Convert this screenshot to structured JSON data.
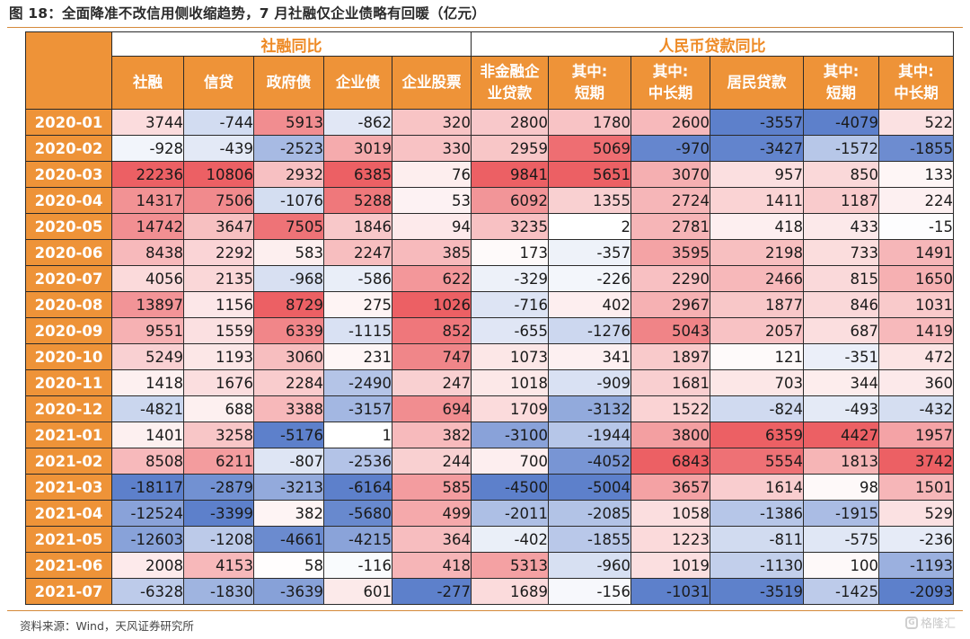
{
  "title": "图 18：全面降准不改信用侧收缩趋势，7 月社融仅企业债略有回暖（亿元）",
  "source": "资料来源：Wind，天风证券研究所",
  "watermark": "格隆汇",
  "groups": [
    {
      "label": "社融同比",
      "span": 5
    },
    {
      "label": "人民币贷款同比",
      "span": 6
    }
  ],
  "columns": [
    "社融",
    "信贷",
    "政府债",
    "企业债",
    "企业股票",
    "非金融企\n业贷款",
    "其中:\n短期",
    "其中:\n中长期",
    "居民贷款",
    "其中:\n短期",
    "其中:\n中长期"
  ],
  "rows": [
    {
      "date": "2020-01",
      "values": [
        3744,
        -744,
        5913,
        -862,
        320,
        2800,
        1780,
        2600,
        -3557,
        -4079,
        522
      ]
    },
    {
      "date": "2020-02",
      "values": [
        -928,
        -439,
        -2523,
        3019,
        330,
        2959,
        5069,
        -970,
        -3427,
        -1572,
        -1855
      ]
    },
    {
      "date": "2020-03",
      "values": [
        22236,
        10806,
        2932,
        6385,
        76,
        9841,
        5651,
        3070,
        957,
        850,
        133
      ]
    },
    {
      "date": "2020-04",
      "values": [
        14317,
        7506,
        -1076,
        5288,
        53,
        6092,
        1355,
        2724,
        1411,
        1187,
        224
      ]
    },
    {
      "date": "2020-05",
      "values": [
        14742,
        3647,
        7505,
        1846,
        94,
        3235,
        2,
        2781,
        418,
        433,
        -15
      ]
    },
    {
      "date": "2020-06",
      "values": [
        8438,
        2292,
        583,
        2247,
        385,
        173,
        -357,
        3595,
        2198,
        733,
        1491
      ]
    },
    {
      "date": "2020-07",
      "values": [
        4056,
        2135,
        -968,
        -586,
        622,
        -329,
        -226,
        2290,
        2466,
        815,
        1650
      ]
    },
    {
      "date": "2020-08",
      "values": [
        13897,
        1156,
        8729,
        275,
        1026,
        -716,
        402,
        2967,
        1877,
        846,
        1031
      ]
    },
    {
      "date": "2020-09",
      "values": [
        9551,
        1559,
        6339,
        -1115,
        852,
        -655,
        -1276,
        5043,
        2057,
        687,
        1419
      ]
    },
    {
      "date": "2020-10",
      "values": [
        5249,
        1193,
        3060,
        231,
        747,
        1073,
        341,
        1897,
        121,
        -351,
        472
      ]
    },
    {
      "date": "2020-11",
      "values": [
        1418,
        1676,
        2284,
        -2490,
        247,
        1018,
        -909,
        1681,
        703,
        344,
        360
      ]
    },
    {
      "date": "2020-12",
      "values": [
        -4821,
        688,
        3388,
        -3157,
        694,
        1709,
        -3132,
        1522,
        -824,
        -493,
        -432
      ]
    },
    {
      "date": "2021-01",
      "values": [
        1401,
        3258,
        -5176,
        1,
        382,
        -3100,
        -1944,
        3800,
        6359,
        4427,
        1957
      ]
    },
    {
      "date": "2021-02",
      "values": [
        8508,
        6211,
        -807,
        -2536,
        244,
        700,
        -4052,
        6843,
        5554,
        1813,
        3742
      ]
    },
    {
      "date": "2021-03",
      "values": [
        -18117,
        -2879,
        -3213,
        -6164,
        585,
        -4500,
        -5004,
        3657,
        1614,
        98,
        1501
      ]
    },
    {
      "date": "2021-04",
      "values": [
        -12524,
        -3399,
        382,
        -5680,
        499,
        -2011,
        -2085,
        1058,
        -1386,
        -1915,
        529
      ]
    },
    {
      "date": "2021-05",
      "values": [
        -12603,
        -1208,
        -4661,
        -4215,
        364,
        -402,
        -1855,
        1223,
        -811,
        -575,
        -236
      ]
    },
    {
      "date": "2021-06",
      "values": [
        2008,
        4153,
        58,
        -116,
        418,
        5313,
        -960,
        1019,
        -1130,
        100,
        -1193
      ]
    },
    {
      "date": "2021-07",
      "values": [
        -6328,
        -1830,
        -3639,
        601,
        -277,
        1689,
        -156,
        -1031,
        -3519,
        -1425,
        -2093
      ]
    }
  ],
  "colors": {
    "header_bg": "#ee9338",
    "header_text": "#ffffff",
    "group_text": "#ee8a25",
    "pos_max": "#ec6064",
    "neg_max": "#5d80cb"
  }
}
